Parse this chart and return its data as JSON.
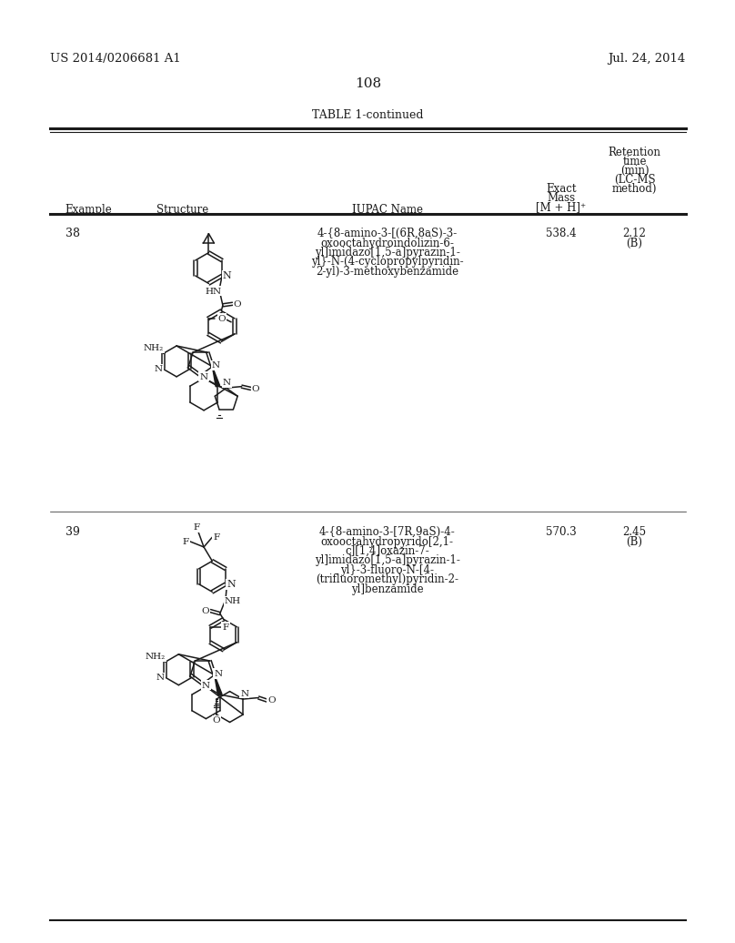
{
  "page_number": "108",
  "patent_number": "US 2014/0206681 A1",
  "patent_date": "Jul. 24, 2014",
  "table_title": "TABLE 1-continued",
  "header_example": "Example",
  "header_structure": "Structure",
  "header_iupac": "IUPAC Name",
  "header_mass1": "Exact",
  "header_mass2": "Mass",
  "header_mass3": "[M + H]⁺",
  "header_ret1": "Retention",
  "header_ret2": "time",
  "header_ret3": "(min)",
  "header_ret4": "(LC-MS",
  "header_ret5": "method)",
  "row1_example": "38",
  "row1_iupac1": "4-{8-amino-3-[(6R,8aS)-3-",
  "row1_iupac2": "oxooctahydroindolizin-6-",
  "row1_iupac3": "yl]imidazo[1,5-a]pyrazin-1-",
  "row1_iupac4": "yl}-N-(4-cyclopropylpyridin-",
  "row1_iupac5": "2-yl)-3-methoxybenzamide",
  "row1_mass": "538.4",
  "row1_ret1": "2.12",
  "row1_ret2": "(B)",
  "row2_example": "39",
  "row2_iupac1": "4-{8-amino-3-[7R,9aS)-4-",
  "row2_iupac2": "oxooctahydropyrido[2,1-",
  "row2_iupac3": "c][1,4]oxazin-7-",
  "row2_iupac4": "yl]imidazo[1,5-a]pyrazin-1-",
  "row2_iupac5": "yl}-3-fluoro-N-[4-",
  "row2_iupac6": "(trifluoromethyl)pyridin-2-",
  "row2_iupac7": "yl]benzamide",
  "row2_mass": "570.3",
  "row2_ret1": "2.45",
  "row2_ret2": "(B)",
  "bg_color": "#ffffff",
  "text_color": "#1a1a1a",
  "lw": 1.1
}
